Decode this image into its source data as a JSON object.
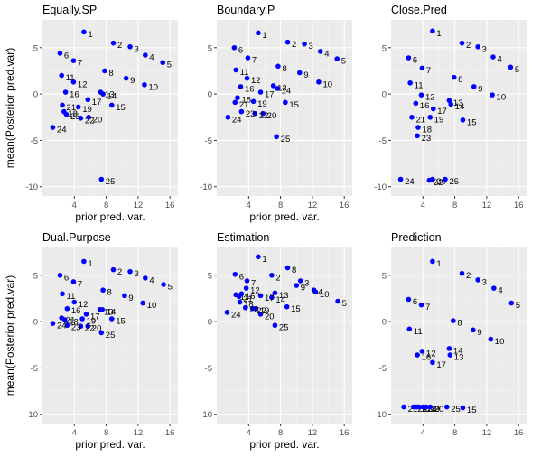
{
  "colors": {
    "panel_bg": "#ebebeb",
    "grid_major": "#ffffff",
    "grid_minor": "#f5f5f5",
    "point": "#0000ff",
    "tick_text": "#4d4d4d"
  },
  "chart_data": [
    {
      "type": "scatter",
      "title": "Equally.SP",
      "xlabel": "prior pred. var.",
      "ylabel": "mean(Posterior pred.var)",
      "xlim": [
        0,
        17
      ],
      "ylim": [
        -11,
        8
      ],
      "xticks": [
        4,
        8,
        12,
        16
      ],
      "yticks": [
        -10,
        -5,
        0,
        5
      ],
      "points": [
        {
          "label": "1",
          "x": 5.2,
          "y": 6.7
        },
        {
          "label": "2",
          "x": 8.9,
          "y": 5.5
        },
        {
          "label": "3",
          "x": 11.0,
          "y": 5.1
        },
        {
          "label": "4",
          "x": 12.9,
          "y": 4.2
        },
        {
          "label": "5",
          "x": 15.1,
          "y": 3.4
        },
        {
          "label": "6",
          "x": 2.2,
          "y": 4.4
        },
        {
          "label": "7",
          "x": 3.9,
          "y": 3.6
        },
        {
          "label": "8",
          "x": 7.8,
          "y": 2.5
        },
        {
          "label": "9",
          "x": 10.5,
          "y": 1.7
        },
        {
          "label": "10",
          "x": 12.8,
          "y": 1.0
        },
        {
          "label": "11",
          "x": 2.4,
          "y": 2.0
        },
        {
          "label": "12",
          "x": 3.9,
          "y": 1.3
        },
        {
          "label": "13",
          "x": 7.3,
          "y": 0.2
        },
        {
          "label": "14",
          "x": 7.6,
          "y": 0.0
        },
        {
          "label": "15",
          "x": 8.7,
          "y": -1.2
        },
        {
          "label": "16",
          "x": 2.9,
          "y": 0.2
        },
        {
          "label": "17",
          "x": 5.7,
          "y": -0.6
        },
        {
          "label": "18",
          "x": 2.7,
          "y": -1.9
        },
        {
          "label": "19",
          "x": 4.5,
          "y": -1.4
        },
        {
          "label": "20",
          "x": 5.8,
          "y": -2.5
        },
        {
          "label": "21",
          "x": 2.5,
          "y": -1.2
        },
        {
          "label": "22",
          "x": 4.8,
          "y": -2.6
        },
        {
          "label": "23",
          "x": 3.0,
          "y": -2.2
        },
        {
          "label": "24",
          "x": 1.3,
          "y": -3.6
        },
        {
          "label": "25",
          "x": 7.4,
          "y": -9.2
        }
      ]
    },
    {
      "type": "scatter",
      "title": "Boundary.P",
      "xlabel": "prior pred. var.",
      "ylabel": "",
      "xlim": [
        0,
        17
      ],
      "ylim": [
        -11,
        8
      ],
      "xticks": [
        4,
        8,
        12,
        16
      ],
      "yticks": [
        -10,
        -5,
        0,
        5
      ],
      "points": [
        {
          "label": "1",
          "x": 5.2,
          "y": 6.6
        },
        {
          "label": "2",
          "x": 8.9,
          "y": 5.6
        },
        {
          "label": "3",
          "x": 11.0,
          "y": 5.4
        },
        {
          "label": "4",
          "x": 13.0,
          "y": 4.6
        },
        {
          "label": "5",
          "x": 15.1,
          "y": 3.8
        },
        {
          "label": "6",
          "x": 2.2,
          "y": 5.0
        },
        {
          "label": "7",
          "x": 3.9,
          "y": 3.9
        },
        {
          "label": "8",
          "x": 7.7,
          "y": 3.0
        },
        {
          "label": "9",
          "x": 10.4,
          "y": 2.3
        },
        {
          "label": "10",
          "x": 12.8,
          "y": 1.3
        },
        {
          "label": "11",
          "x": 2.4,
          "y": 2.6
        },
        {
          "label": "12",
          "x": 3.8,
          "y": 1.7
        },
        {
          "label": "13",
          "x": 7.1,
          "y": 0.9
        },
        {
          "label": "14",
          "x": 7.6,
          "y": 0.6
        },
        {
          "label": "15",
          "x": 8.6,
          "y": -0.9
        },
        {
          "label": "16",
          "x": 3.0,
          "y": 0.8
        },
        {
          "label": "17",
          "x": 5.5,
          "y": 0.2
        },
        {
          "label": "18",
          "x": 2.6,
          "y": -0.4
        },
        {
          "label": "19",
          "x": 4.6,
          "y": -0.8
        },
        {
          "label": "20",
          "x": 5.8,
          "y": -2.1
        },
        {
          "label": "21",
          "x": 2.3,
          "y": -0.9
        },
        {
          "label": "22",
          "x": 4.8,
          "y": -2.1
        },
        {
          "label": "23",
          "x": 3.1,
          "y": -1.9
        },
        {
          "label": "24",
          "x": 1.4,
          "y": -2.5
        },
        {
          "label": "25",
          "x": 7.5,
          "y": -4.6
        }
      ]
    },
    {
      "type": "scatter",
      "title": "Close.Pred",
      "xlabel": "",
      "ylabel": "",
      "xlim": [
        0,
        17
      ],
      "ylim": [
        -11,
        8
      ],
      "xticks": [
        4,
        8,
        12,
        16
      ],
      "yticks": [
        -10,
        -5,
        0,
        5
      ],
      "points": [
        {
          "label": "1",
          "x": 5.2,
          "y": 6.8
        },
        {
          "label": "2",
          "x": 8.9,
          "y": 5.5
        },
        {
          "label": "3",
          "x": 10.9,
          "y": 5.1
        },
        {
          "label": "4",
          "x": 12.8,
          "y": 4.0
        },
        {
          "label": "5",
          "x": 15.0,
          "y": 2.9
        },
        {
          "label": "6",
          "x": 2.2,
          "y": 3.9
        },
        {
          "label": "7",
          "x": 3.9,
          "y": 2.8
        },
        {
          "label": "8",
          "x": 7.9,
          "y": 1.8
        },
        {
          "label": "9",
          "x": 10.4,
          "y": 0.8
        },
        {
          "label": "10",
          "x": 12.7,
          "y": -0.1
        },
        {
          "label": "11",
          "x": 2.4,
          "y": 1.2
        },
        {
          "label": "12",
          "x": 3.8,
          "y": -0.1
        },
        {
          "label": "13",
          "x": 7.3,
          "y": -0.7
        },
        {
          "label": "14",
          "x": 7.5,
          "y": -1.1
        },
        {
          "label": "15",
          "x": 9.0,
          "y": -2.8
        },
        {
          "label": "16",
          "x": 3.1,
          "y": -1.0
        },
        {
          "label": "17",
          "x": 5.3,
          "y": -1.6
        },
        {
          "label": "18",
          "x": 3.4,
          "y": -3.6
        },
        {
          "label": "19",
          "x": 4.9,
          "y": -2.5
        },
        {
          "label": "21",
          "x": 2.6,
          "y": -2.5
        },
        {
          "label": "23",
          "x": 3.3,
          "y": -4.5
        },
        {
          "label": "24",
          "x": 1.2,
          "y": -9.2
        },
        {
          "label": "20",
          "x": 5.2,
          "y": -9.2
        },
        {
          "label": "22",
          "x": 4.8,
          "y": -9.3
        },
        {
          "label": "25",
          "x": 6.8,
          "y": -9.2
        }
      ]
    },
    {
      "type": "scatter",
      "title": "Dual.Purpose",
      "xlabel": "prior pred. var.",
      "ylabel": "mean(Posterior pred.var)",
      "xlim": [
        0,
        17
      ],
      "ylim": [
        -11,
        8
      ],
      "xticks": [
        4,
        8,
        12,
        16
      ],
      "yticks": [
        -10,
        -5,
        0,
        5
      ],
      "points": [
        {
          "label": "1",
          "x": 5.2,
          "y": 6.5
        },
        {
          "label": "2",
          "x": 8.9,
          "y": 5.6
        },
        {
          "label": "3",
          "x": 11.0,
          "y": 5.4
        },
        {
          "label": "4",
          "x": 12.9,
          "y": 4.7
        },
        {
          "label": "5",
          "x": 15.2,
          "y": 4.0
        },
        {
          "label": "6",
          "x": 2.2,
          "y": 5.0
        },
        {
          "label": "7",
          "x": 3.9,
          "y": 4.3
        },
        {
          "label": "8",
          "x": 7.6,
          "y": 3.4
        },
        {
          "label": "9",
          "x": 10.3,
          "y": 2.8
        },
        {
          "label": "10",
          "x": 12.6,
          "y": 2.0
        },
        {
          "label": "11",
          "x": 2.5,
          "y": 3.0
        },
        {
          "label": "12",
          "x": 4.0,
          "y": 2.1
        },
        {
          "label": "13",
          "x": 7.2,
          "y": 1.3
        },
        {
          "label": "14",
          "x": 7.5,
          "y": 1.3
        },
        {
          "label": "15",
          "x": 8.7,
          "y": 0.3
        },
        {
          "label": "16",
          "x": 3.1,
          "y": 1.4
        },
        {
          "label": "17",
          "x": 5.5,
          "y": 0.8
        },
        {
          "label": "18",
          "x": 2.8,
          "y": 0.2
        },
        {
          "label": "19",
          "x": 5.0,
          "y": 0.3
        },
        {
          "label": "20",
          "x": 5.7,
          "y": -0.5
        },
        {
          "label": "21",
          "x": 2.4,
          "y": 0.4
        },
        {
          "label": "22",
          "x": 4.8,
          "y": -0.5
        },
        {
          "label": "23",
          "x": 3.1,
          "y": -0.4
        },
        {
          "label": "24",
          "x": 1.3,
          "y": -0.2
        },
        {
          "label": "25",
          "x": 7.4,
          "y": -1.2
        }
      ]
    },
    {
      "type": "scatter",
      "title": "Estimation",
      "xlabel": "prior pred. var.",
      "ylabel": "",
      "xlim": [
        0,
        17
      ],
      "ylim": [
        -11,
        8
      ],
      "xticks": [
        4,
        8,
        12,
        16
      ],
      "yticks": [
        -10,
        -5,
        0,
        5
      ],
      "points": [
        {
          "label": "1",
          "x": 5.2,
          "y": 7.0
        },
        {
          "label": "2",
          "x": 6.9,
          "y": 5.0
        },
        {
          "label": "3",
          "x": 10.5,
          "y": 4.4
        },
        {
          "label": "4",
          "x": 12.2,
          "y": 3.4
        },
        {
          "label": "5",
          "x": 15.2,
          "y": 2.2
        },
        {
          "label": "6",
          "x": 2.3,
          "y": 5.1
        },
        {
          "label": "7",
          "x": 3.8,
          "y": 4.4
        },
        {
          "label": "8",
          "x": 8.9,
          "y": 5.8
        },
        {
          "label": "9",
          "x": 10.0,
          "y": 3.9
        },
        {
          "label": "10",
          "x": 12.4,
          "y": 3.2
        },
        {
          "label": "11",
          "x": 2.4,
          "y": 2.9
        },
        {
          "label": "12",
          "x": 3.7,
          "y": 3.6
        },
        {
          "label": "13",
          "x": 7.3,
          "y": 3.1
        },
        {
          "label": "14",
          "x": 6.9,
          "y": 2.6
        },
        {
          "label": "15",
          "x": 8.8,
          "y": 1.6
        },
        {
          "label": "16",
          "x": 3.1,
          "y": 3.0
        },
        {
          "label": "17",
          "x": 5.5,
          "y": 2.8
        },
        {
          "label": "18",
          "x": 2.9,
          "y": 2.1
        },
        {
          "label": "19",
          "x": 4.9,
          "y": 1.4
        },
        {
          "label": "20",
          "x": 5.5,
          "y": 0.8
        },
        {
          "label": "21",
          "x": 2.8,
          "y": 2.7
        },
        {
          "label": "22",
          "x": 4.5,
          "y": 1.4
        },
        {
          "label": "23",
          "x": 3.6,
          "y": 1.5
        },
        {
          "label": "24",
          "x": 1.3,
          "y": 1.0
        },
        {
          "label": "25",
          "x": 7.3,
          "y": -0.4
        }
      ]
    },
    {
      "type": "scatter",
      "title": "Prediction",
      "xlabel": "",
      "ylabel": "",
      "xlim": [
        0,
        17
      ],
      "ylim": [
        -11,
        8
      ],
      "xticks": [
        4,
        8,
        12,
        16
      ],
      "yticks": [
        -10,
        -5,
        0,
        5
      ],
      "points": [
        {
          "label": "1",
          "x": 5.2,
          "y": 6.5
        },
        {
          "label": "2",
          "x": 8.9,
          "y": 5.2
        },
        {
          "label": "3",
          "x": 10.9,
          "y": 4.5
        },
        {
          "label": "4",
          "x": 12.9,
          "y": 3.6
        },
        {
          "label": "5",
          "x": 15.1,
          "y": 2.0
        },
        {
          "label": "6",
          "x": 2.2,
          "y": 2.4
        },
        {
          "label": "7",
          "x": 3.8,
          "y": 1.8
        },
        {
          "label": "8",
          "x": 7.8,
          "y": 0.1
        },
        {
          "label": "9",
          "x": 10.3,
          "y": -0.9
        },
        {
          "label": "10",
          "x": 12.5,
          "y": -1.9
        },
        {
          "label": "11",
          "x": 2.3,
          "y": -0.8
        },
        {
          "label": "12",
          "x": 3.9,
          "y": -3.2
        },
        {
          "label": "13",
          "x": 7.4,
          "y": -3.6
        },
        {
          "label": "14",
          "x": 7.3,
          "y": -2.9
        },
        {
          "label": "16",
          "x": 3.3,
          "y": -3.6
        },
        {
          "label": "17",
          "x": 5.2,
          "y": -4.4
        },
        {
          "label": "21",
          "x": 1.6,
          "y": -9.2
        },
        {
          "label": "22",
          "x": 2.8,
          "y": -9.2
        },
        {
          "label": "18",
          "x": 3.2,
          "y": -9.2
        },
        {
          "label": "23",
          "x": 3.5,
          "y": -9.2
        },
        {
          "label": "24",
          "x": 4.0,
          "y": -9.2
        },
        {
          "label": "19",
          "x": 4.4,
          "y": -9.2
        },
        {
          "label": "20",
          "x": 4.9,
          "y": -9.2
        },
        {
          "label": "25",
          "x": 7.0,
          "y": -9.2
        },
        {
          "label": "15",
          "x": 9.0,
          "y": -9.3
        }
      ]
    }
  ]
}
